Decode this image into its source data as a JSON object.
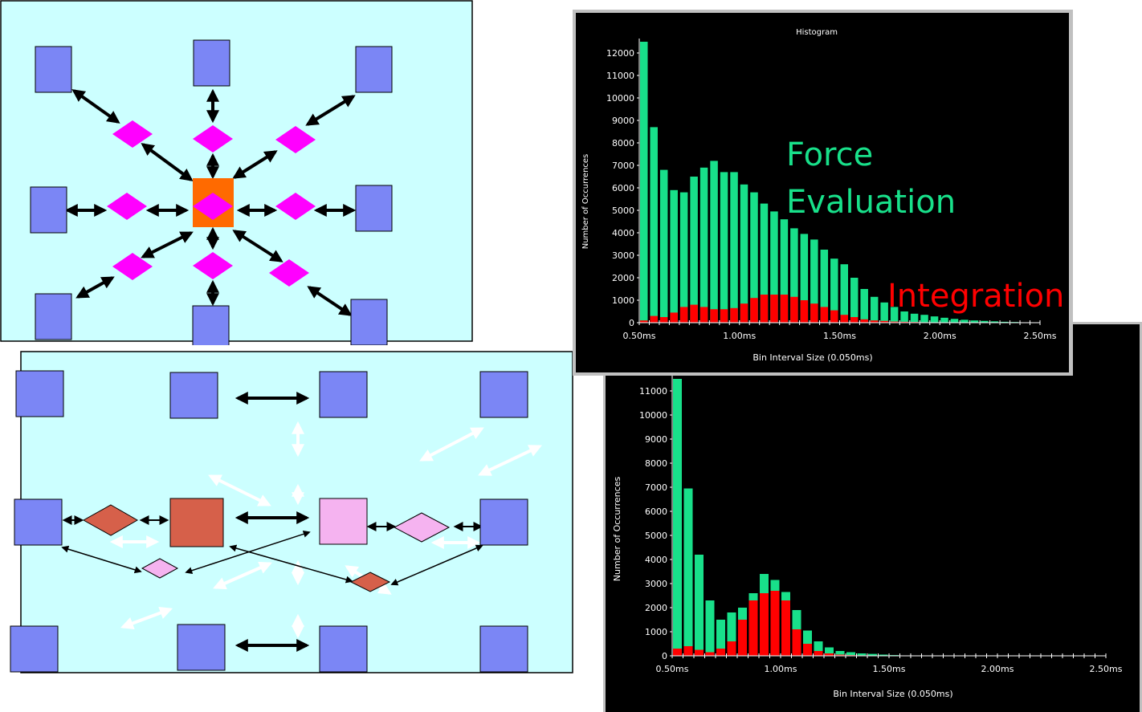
{
  "diagram_star": {
    "description_nodes": "compute nodes around central hub",
    "colors": {
      "background": "#ccffff",
      "node": "#7b86f5",
      "hub": "#ff6a00",
      "diamond": "#ff00ff",
      "arrow": "#000000"
    }
  },
  "diagram_grid": {
    "colors": {
      "background": "#ccffff",
      "node": "#7b86f5",
      "node_red": "#d6604a",
      "node_pink": "#f5b3f0",
      "arrow": "#000000",
      "arrow_light": "#ffffff"
    }
  },
  "charts": {
    "top": {
      "title": "Histogram",
      "ylabel": "Number of Occurrences",
      "xlabel": "Bin Interval Size (0.050ms)",
      "annotation_force_line1": "Force",
      "annotation_force_line2": "Evaluation",
      "annotation_integration": "Integration",
      "colors": {
        "force": "#18e08a",
        "integration": "#ff0000",
        "background": "#000000"
      }
    },
    "bottom": {
      "ylabel": "Number of Occurrences",
      "xlabel": "Bin Interval Size (0.050ms)"
    }
  },
  "chart_data": [
    {
      "type": "bar",
      "title": "Histogram",
      "xlabel": "Bin Interval Size (0.050ms)",
      "ylabel": "Number of Occurrences",
      "ylim": [
        0,
        12500
      ],
      "xlim": [
        0.5,
        2.5
      ],
      "x_ticks": [
        "0.50ms",
        "1.00ms",
        "1.50ms",
        "2.00ms",
        "2.50ms"
      ],
      "y_ticks": [
        0,
        1000,
        2000,
        3000,
        4000,
        5000,
        6000,
        7000,
        8000,
        9000,
        10000,
        11000,
        12000
      ],
      "x": [
        0.5,
        0.55,
        0.6,
        0.65,
        0.7,
        0.75,
        0.8,
        0.85,
        0.9,
        0.95,
        1.0,
        1.05,
        1.1,
        1.15,
        1.2,
        1.25,
        1.3,
        1.35,
        1.4,
        1.45,
        1.5,
        1.55,
        1.6,
        1.65,
        1.7,
        1.75,
        1.8,
        1.85,
        1.9,
        1.95,
        2.0,
        2.05,
        2.1,
        2.15,
        2.2,
        2.25,
        2.3,
        2.35
      ],
      "series": [
        {
          "name": "Force Evaluation",
          "values": [
            12500,
            8700,
            6800,
            5900,
            5800,
            6500,
            6900,
            7200,
            6700,
            6700,
            6150,
            5800,
            5300,
            4950,
            4600,
            4200,
            3950,
            3700,
            3250,
            2850,
            2600,
            2000,
            1500,
            1150,
            900,
            700,
            500,
            400,
            350,
            280,
            220,
            170,
            130,
            100,
            80,
            60,
            40,
            30
          ]
        },
        {
          "name": "Integration",
          "values": [
            100,
            300,
            250,
            450,
            700,
            800,
            700,
            600,
            600,
            650,
            850,
            1100,
            1250,
            1250,
            1250,
            1150,
            1000,
            850,
            700,
            550,
            350,
            250,
            150,
            100,
            80,
            50,
            40,
            30,
            20,
            10,
            10,
            10,
            5,
            5,
            0,
            0,
            0,
            0
          ]
        }
      ]
    },
    {
      "type": "bar",
      "xlabel": "Bin Interval Size (0.050ms)",
      "ylabel": "Number of Occurrences",
      "ylim": [
        0,
        11500
      ],
      "xlim": [
        0.5,
        2.5
      ],
      "x_ticks": [
        "0.50ms",
        "1.00ms",
        "1.50ms",
        "2.00ms",
        "2.50ms"
      ],
      "y_ticks": [
        0,
        1000,
        2000,
        3000,
        4000,
        5000,
        6000,
        7000,
        8000,
        9000,
        10000,
        11000
      ],
      "x": [
        0.5,
        0.55,
        0.6,
        0.65,
        0.7,
        0.75,
        0.8,
        0.85,
        0.9,
        0.95,
        1.0,
        1.05,
        1.1,
        1.15,
        1.2,
        1.25,
        1.3,
        1.35,
        1.4,
        1.45,
        1.5
      ],
      "series": [
        {
          "name": "Force Evaluation",
          "values": [
            11500,
            6950,
            4200,
            2300,
            1500,
            1800,
            2000,
            2600,
            3400,
            3150,
            2650,
            1900,
            1050,
            600,
            350,
            200,
            150,
            100,
            80,
            50,
            30
          ]
        },
        {
          "name": "Integration",
          "values": [
            300,
            400,
            250,
            150,
            300,
            600,
            1500,
            2300,
            2600,
            2700,
            2300,
            1100,
            500,
            200,
            100,
            50,
            30,
            20,
            10,
            5,
            5
          ]
        }
      ]
    }
  ]
}
